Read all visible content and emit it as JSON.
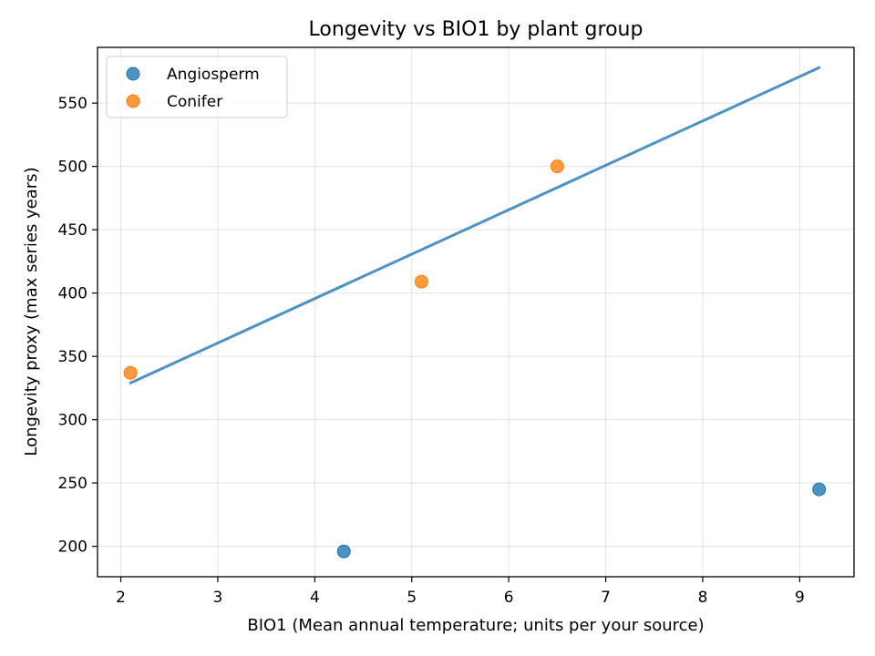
{
  "chart_data": {
    "type": "scatter",
    "title": "Longevity vs BIO1 by plant group",
    "xlabel": "BIO1 (Mean annual temperature; units per your source)",
    "ylabel": "Longevity proxy (max series years)",
    "xlim": [
      1.76,
      9.56
    ],
    "ylim": [
      176,
      594
    ],
    "xticks": [
      2,
      3,
      4,
      5,
      6,
      7,
      8,
      9
    ],
    "yticks": [
      200,
      250,
      300,
      350,
      400,
      450,
      500,
      550
    ],
    "grid": true,
    "legend_position": "top-left",
    "series": [
      {
        "name": "Angiosperm",
        "color": "#1f77b4",
        "points": [
          {
            "x": 4.3,
            "y": 196
          },
          {
            "x": 9.2,
            "y": 245
          }
        ]
      },
      {
        "name": "Conifer",
        "color": "#ff7f0e",
        "points": [
          {
            "x": 2.1,
            "y": 337
          },
          {
            "x": 5.1,
            "y": 409
          },
          {
            "x": 6.5,
            "y": 500
          }
        ]
      }
    ],
    "trend_line": {
      "color": "#1f77b4",
      "x": [
        2.1,
        9.2
      ],
      "y": [
        329,
        578
      ]
    }
  }
}
